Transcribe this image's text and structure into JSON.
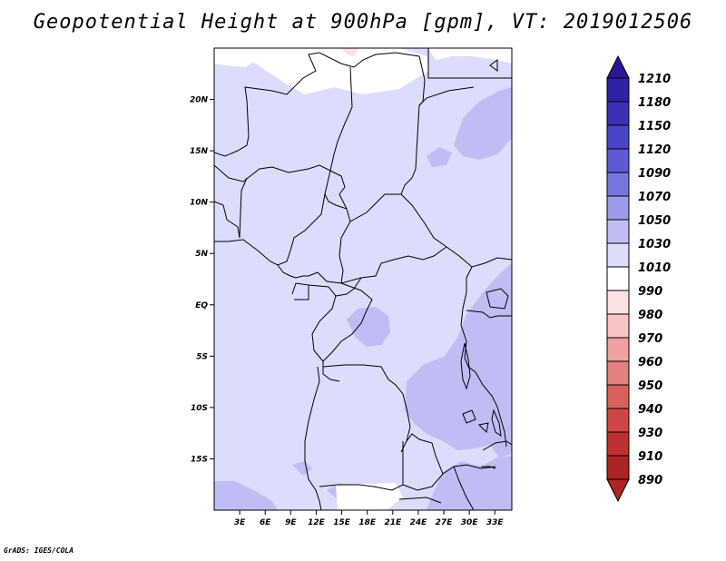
{
  "title": "Geopotential Height at 900hPa [gpm], VT: 2019012506",
  "credit": "GrADS: IGES/COLA",
  "map": {
    "lon_range": [
      0,
      35
    ],
    "lat_range": [
      -20,
      25
    ],
    "lat_ticks": [
      {
        "value": 20,
        "label": "20N"
      },
      {
        "value": 15,
        "label": "15N"
      },
      {
        "value": 10,
        "label": "10N"
      },
      {
        "value": 5,
        "label": "5N"
      },
      {
        "value": 0,
        "label": "EQ"
      },
      {
        "value": -5,
        "label": "5S"
      },
      {
        "value": -10,
        "label": "10S"
      },
      {
        "value": -15,
        "label": "15S"
      }
    ],
    "lon_ticks": [
      {
        "value": 3,
        "label": "3E"
      },
      {
        "value": 6,
        "label": "6E"
      },
      {
        "value": 9,
        "label": "9E"
      },
      {
        "value": 12,
        "label": "12E"
      },
      {
        "value": 15,
        "label": "15E"
      },
      {
        "value": 18,
        "label": "18E"
      },
      {
        "value": 21,
        "label": "21E"
      },
      {
        "value": 24,
        "label": "24E"
      },
      {
        "value": 27,
        "label": "27E"
      },
      {
        "value": 30,
        "label": "30E"
      },
      {
        "value": 33,
        "label": "33E"
      }
    ],
    "field_colors": {
      "band_1010_1030": "#dcdcfc",
      "band_1030_1050": "#c0bdf5",
      "band_990_1010": "#ffffff",
      "band_980_990": "#fbdede"
    }
  },
  "colorbar": {
    "levels": [
      "1210",
      "1180",
      "1150",
      "1120",
      "1090",
      "1070",
      "1050",
      "1030",
      "1010",
      "990",
      "980",
      "970",
      "960",
      "950",
      "940",
      "930",
      "910",
      "890"
    ],
    "colors": [
      "#2a1696",
      "#3022a6",
      "#3b30b6",
      "#4a44c8",
      "#5c5ad6",
      "#7675e0",
      "#9c9bea",
      "#c0bdf5",
      "#dcdcfc",
      "#ffffff",
      "#fde0e0",
      "#f8c4c4",
      "#f0a0a0",
      "#e48080",
      "#da6060",
      "#d04646",
      "#c03030",
      "#ac2424"
    ]
  }
}
